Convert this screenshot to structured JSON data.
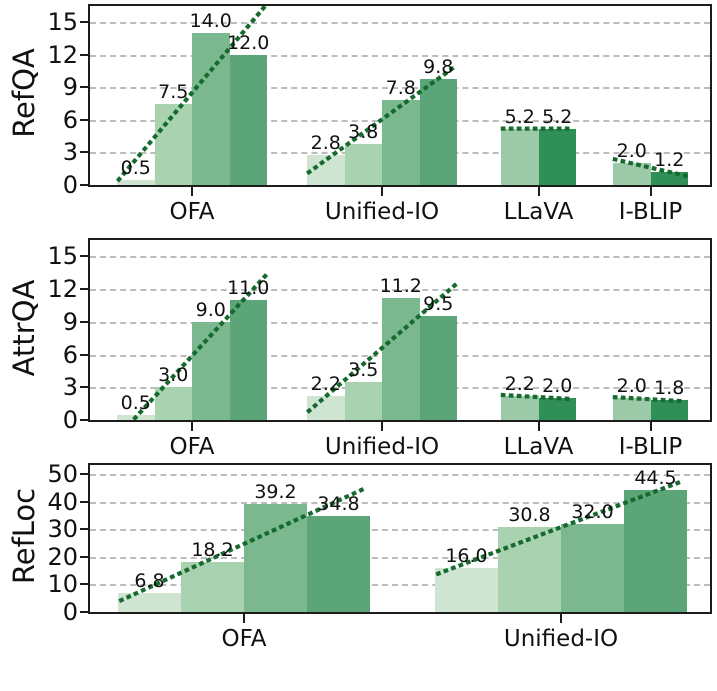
{
  "colors": {
    "background": "#ffffff",
    "bar_palette_4": [
      "#cfe5d2",
      "#a9d2b1",
      "#7cb88f",
      "#5ba579"
    ],
    "bar_palette_2": [
      "#9ccaa9",
      "#2f8f57"
    ],
    "trend_line": "#156b2d",
    "gridline": "#bcbcbc",
    "axis_spine": "#1c1c1c",
    "text": "#111111"
  },
  "chart_data": [
    {
      "type": "bar",
      "ylabel": "RefQA",
      "ylim": [
        0,
        15
      ],
      "yticks": [
        0,
        3,
        6,
        9,
        12,
        15
      ],
      "grid": true,
      "legend_position": "none",
      "trendline": "linear-regression-per-group, dotted dark green",
      "groups": [
        {
          "label": "OFA",
          "values": [
            0.5,
            7.5,
            14.0,
            12.0
          ]
        },
        {
          "label": "Unified-IO",
          "values": [
            2.8,
            3.8,
            7.8,
            9.8
          ]
        },
        {
          "label": "LLaVA",
          "values": [
            5.2,
            5.2
          ]
        },
        {
          "label": "I-BLIP",
          "values": [
            2.0,
            1.2
          ]
        }
      ]
    },
    {
      "type": "bar",
      "ylabel": "AttrQA",
      "ylim": [
        0,
        15
      ],
      "yticks": [
        0,
        3,
        6,
        9,
        12,
        15
      ],
      "grid": true,
      "legend_position": "none",
      "trendline": "linear-regression-per-group, dotted dark green",
      "groups": [
        {
          "label": "OFA",
          "values": [
            0.5,
            3.0,
            9.0,
            11.0
          ]
        },
        {
          "label": "Unified-IO",
          "values": [
            2.2,
            3.5,
            11.2,
            9.5
          ]
        },
        {
          "label": "LLaVA",
          "values": [
            2.2,
            2.0
          ]
        },
        {
          "label": "I-BLIP",
          "values": [
            2.0,
            1.8
          ]
        }
      ]
    },
    {
      "type": "bar",
      "ylabel": "RefLoc",
      "ylim": [
        0,
        50
      ],
      "yticks": [
        0,
        10,
        20,
        30,
        40,
        50
      ],
      "grid": true,
      "legend_position": "none",
      "trendline": "linear-regression-per-group, dotted dark green",
      "groups": [
        {
          "label": "OFA",
          "values": [
            6.8,
            18.2,
            39.2,
            34.8
          ]
        },
        {
          "label": "Unified-IO",
          "values": [
            16.0,
            30.8,
            32.0,
            44.5
          ]
        }
      ]
    }
  ]
}
